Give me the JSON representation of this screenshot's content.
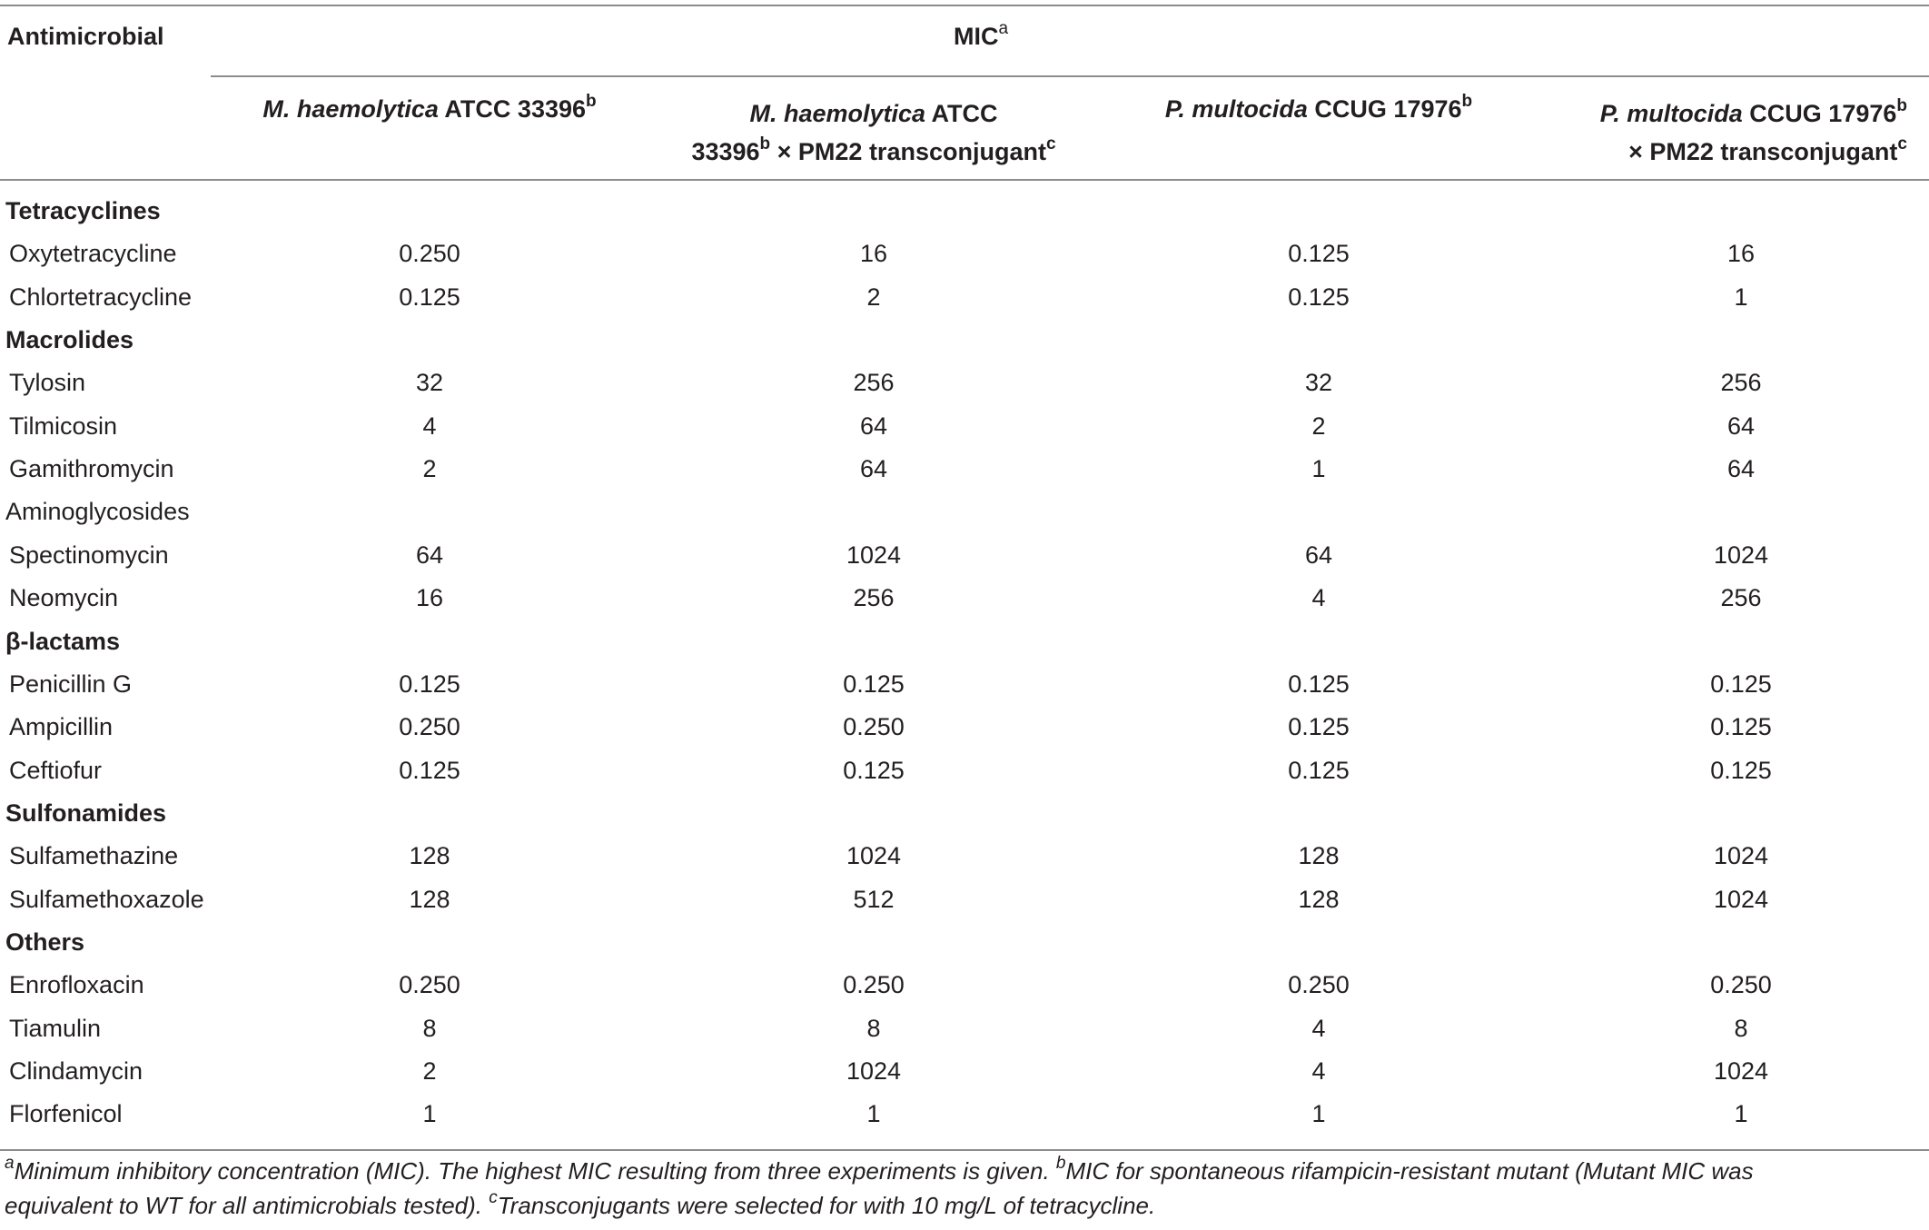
{
  "table": {
    "col0_header": "Antimicrobial",
    "mic_header": "MIC",
    "mic_header_sup": "a",
    "col1": {
      "italic": "M. haemolytica",
      "rest": " ATCC 33396",
      "sup": "b"
    },
    "col2": {
      "line1_italic": "M. haemolytica",
      "line1_rest": " ATCC",
      "line2_a": "33396",
      "line2_sup": "b",
      "line2_b": " × PM22 transconjugant",
      "line2_sup2": "c"
    },
    "col3": {
      "italic": "P. multocida",
      "rest": " CCUG 17976",
      "sup": "b"
    },
    "col4": {
      "line1_italic": "P. multocida",
      "line1_rest": " CCUG 17976",
      "line1_sup": "b",
      "line2": "× PM22 transconjugant",
      "line2_sup": "c"
    },
    "rows": [
      {
        "label": "Tetracyclines",
        "group": true,
        "bold": true,
        "values": [
          "",
          "",
          "",
          ""
        ]
      },
      {
        "label": "Oxytetracycline",
        "group": false,
        "values": [
          "0.250",
          "16",
          "0.125",
          "16"
        ]
      },
      {
        "label": "Chlortetracycline",
        "group": false,
        "values": [
          "0.125",
          "2",
          "0.125",
          "1"
        ]
      },
      {
        "label": "Macrolides",
        "group": true,
        "bold": true,
        "values": [
          "",
          "",
          "",
          ""
        ]
      },
      {
        "label": "Tylosin",
        "group": false,
        "values": [
          "32",
          "256",
          "32",
          "256"
        ]
      },
      {
        "label": "Tilmicosin",
        "group": false,
        "values": [
          "4",
          "64",
          "2",
          "64"
        ]
      },
      {
        "label": "Gamithromycin",
        "group": false,
        "values": [
          "2",
          "64",
          "1",
          "64"
        ]
      },
      {
        "label": "Aminoglycosides",
        "group": true,
        "bold": false,
        "values": [
          "",
          "",
          "",
          ""
        ]
      },
      {
        "label": "Spectinomycin",
        "group": false,
        "values": [
          "64",
          "1024",
          "64",
          "1024"
        ]
      },
      {
        "label": "Neomycin",
        "group": false,
        "values": [
          "16",
          "256",
          "4",
          "256"
        ]
      },
      {
        "label": "β-lactams",
        "group": true,
        "bold": true,
        "values": [
          "",
          "",
          "",
          ""
        ]
      },
      {
        "label": "Penicillin G",
        "group": false,
        "values": [
          "0.125",
          "0.125",
          "0.125",
          "0.125"
        ]
      },
      {
        "label": "Ampicillin",
        "group": false,
        "values": [
          "0.250",
          "0.250",
          "0.125",
          "0.125"
        ]
      },
      {
        "label": "Ceftiofur",
        "group": false,
        "values": [
          "0.125",
          "0.125",
          "0.125",
          "0.125"
        ]
      },
      {
        "label": "Sulfonamides",
        "group": true,
        "bold": true,
        "values": [
          "",
          "",
          "",
          ""
        ]
      },
      {
        "label": "Sulfamethazine",
        "group": false,
        "values": [
          "128",
          "1024",
          "128",
          "1024"
        ]
      },
      {
        "label": "Sulfamethoxazole",
        "group": false,
        "values": [
          "128",
          "512",
          "128",
          "1024"
        ]
      },
      {
        "label": "Others",
        "group": true,
        "bold": true,
        "values": [
          "",
          "",
          "",
          ""
        ]
      },
      {
        "label": "Enrofloxacin",
        "group": false,
        "values": [
          "0.250",
          "0.250",
          "0.250",
          "0.250"
        ]
      },
      {
        "label": "Tiamulin",
        "group": false,
        "values": [
          "8",
          "8",
          "4",
          "8"
        ]
      },
      {
        "label": "Clindamycin",
        "group": false,
        "values": [
          "2",
          "1024",
          "4",
          "1024"
        ]
      },
      {
        "label": "Florfenicol",
        "group": false,
        "values": [
          "1",
          "1",
          "1",
          "1"
        ]
      }
    ]
  },
  "footnotes": {
    "a_sup": "a",
    "a_text": "Minimum inhibitory concentration (MIC). The highest MIC resulting from three experiments is given. ",
    "b_sup": "b",
    "b_text_line1": "MIC for spontaneous rifampicin-resistant mutant (Mutant MIC was",
    "b_text_line2": "equivalent to WT for all antimicrobials tested). ",
    "c_sup": "c",
    "c_text": "Transconjugants were selected for with 10 mg/L of tetracycline."
  }
}
